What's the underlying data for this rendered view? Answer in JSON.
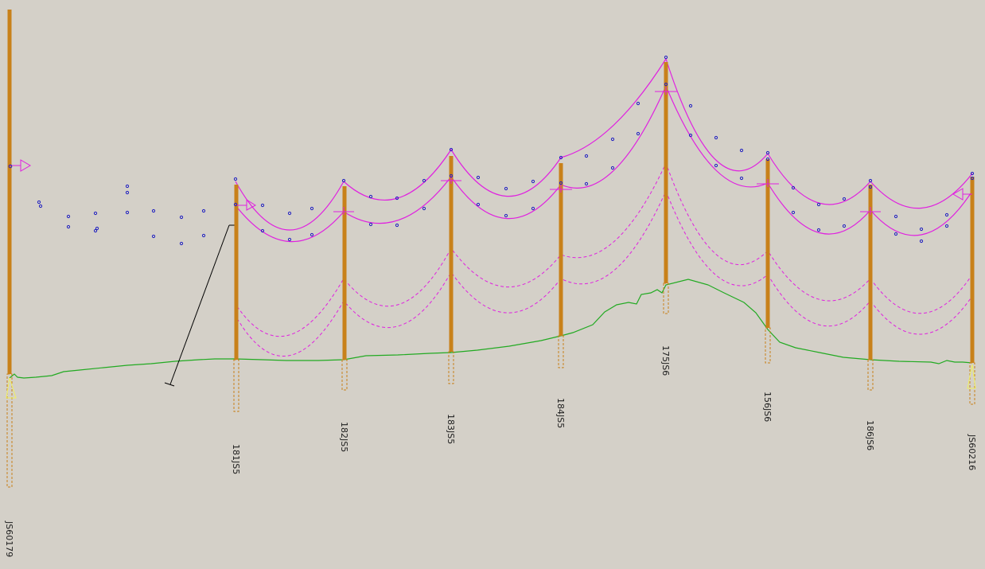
{
  "colors": {
    "background": "#d4d0c8",
    "pole": "#c8811a",
    "pole_buried": "#c8811a",
    "conductor": "#e020e0",
    "ground": "#22aa22",
    "survey_point": "#2020c0",
    "stay": "#000000",
    "anchor": "#f0f060"
  },
  "structures": [
    {
      "id": "JS60179"
    },
    {
      "id": "181JS5"
    },
    {
      "id": "182JS5"
    },
    {
      "id": "183JS5"
    },
    {
      "id": "184JS5"
    },
    {
      "id": "175JS6"
    },
    {
      "id": "156JS6"
    },
    {
      "id": "186JS6"
    },
    {
      "id": "JS60216"
    }
  ]
}
